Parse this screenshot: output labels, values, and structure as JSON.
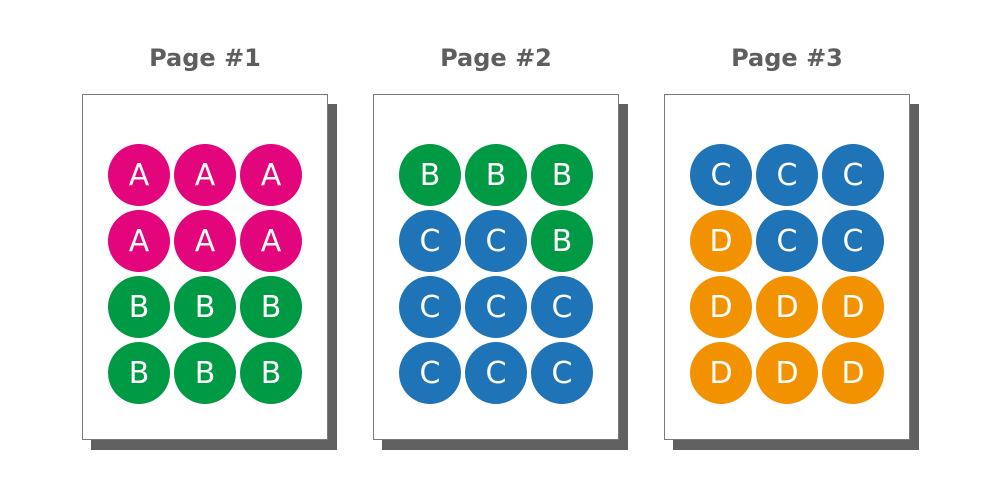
{
  "colors": {
    "A": "#e3057c",
    "B": "#009a44",
    "C": "#1f73b7",
    "D": "#f39200"
  },
  "pages": [
    {
      "title": "Page #1",
      "labels": [
        "A",
        "A",
        "A",
        "A",
        "A",
        "A",
        "B",
        "B",
        "B",
        "B",
        "B",
        "B"
      ]
    },
    {
      "title": "Page #2",
      "labels": [
        "B",
        "B",
        "B",
        "C",
        "C",
        "B",
        "C",
        "C",
        "C",
        "C",
        "C",
        "C"
      ]
    },
    {
      "title": "Page #3",
      "labels": [
        "C",
        "C",
        "C",
        "D",
        "C",
        "C",
        "D",
        "D",
        "D",
        "D",
        "D",
        "D"
      ]
    }
  ]
}
